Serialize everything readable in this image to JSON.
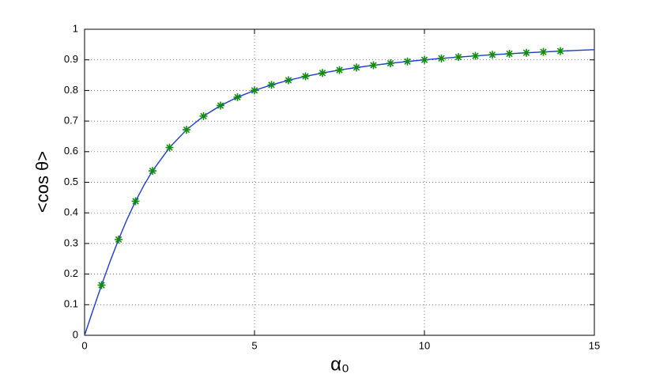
{
  "chart_data": {
    "type": "line",
    "xlabel": "α₀",
    "ylabel": "<cos θ>",
    "xlim": [
      0,
      15
    ],
    "ylim": [
      0,
      1
    ],
    "xticks": [
      0,
      5,
      10,
      15
    ],
    "yticks": [
      0,
      0.1,
      0.2,
      0.3,
      0.4,
      0.5,
      0.6,
      0.7,
      0.8,
      0.9,
      1
    ],
    "grid": true,
    "series": [
      {
        "color": "#1b3bd6",
        "marker": "none",
        "x": [
          0,
          0.25,
          0.5,
          0.75,
          1,
          1.25,
          1.5,
          1.75,
          2,
          2.5,
          3,
          3.5,
          4,
          4.5,
          5,
          5.5,
          6,
          6.5,
          7,
          7.5,
          8,
          8.5,
          9,
          9.5,
          10,
          10.5,
          11,
          11.5,
          12,
          12.5,
          13,
          13.5,
          14,
          14.5,
          15
        ],
        "values": [
          0,
          0.083,
          0.164,
          0.2411,
          0.313,
          0.3789,
          0.4381,
          0.4908,
          0.5373,
          0.6135,
          0.6716,
          0.7161,
          0.7507,
          0.778,
          0.8001,
          0.8182,
          0.8333,
          0.8462,
          0.8571,
          0.8667,
          0.875,
          0.8824,
          0.8889,
          0.8947,
          0.9,
          0.9048,
          0.9091,
          0.913,
          0.9167,
          0.92,
          0.9231,
          0.9259,
          0.9286,
          0.931,
          0.9333
        ]
      },
      {
        "color": "#138a13",
        "marker": "star",
        "x": [
          0.5,
          1,
          1.5,
          2,
          2.5,
          3,
          3.5,
          4,
          4.5,
          5,
          5.5,
          6,
          6.5,
          7,
          7.5,
          8,
          8.5,
          9,
          9.5,
          10,
          10.5,
          11,
          11.5,
          12,
          12.5,
          13,
          13.5,
          14
        ],
        "values": [
          0.164,
          0.313,
          0.4381,
          0.5373,
          0.6135,
          0.6716,
          0.7161,
          0.7507,
          0.778,
          0.8001,
          0.8182,
          0.8333,
          0.8462,
          0.8571,
          0.8667,
          0.875,
          0.8824,
          0.8889,
          0.8947,
          0.9,
          0.9048,
          0.9091,
          0.913,
          0.9167,
          0.92,
          0.9231,
          0.9259,
          0.9286
        ]
      }
    ]
  }
}
